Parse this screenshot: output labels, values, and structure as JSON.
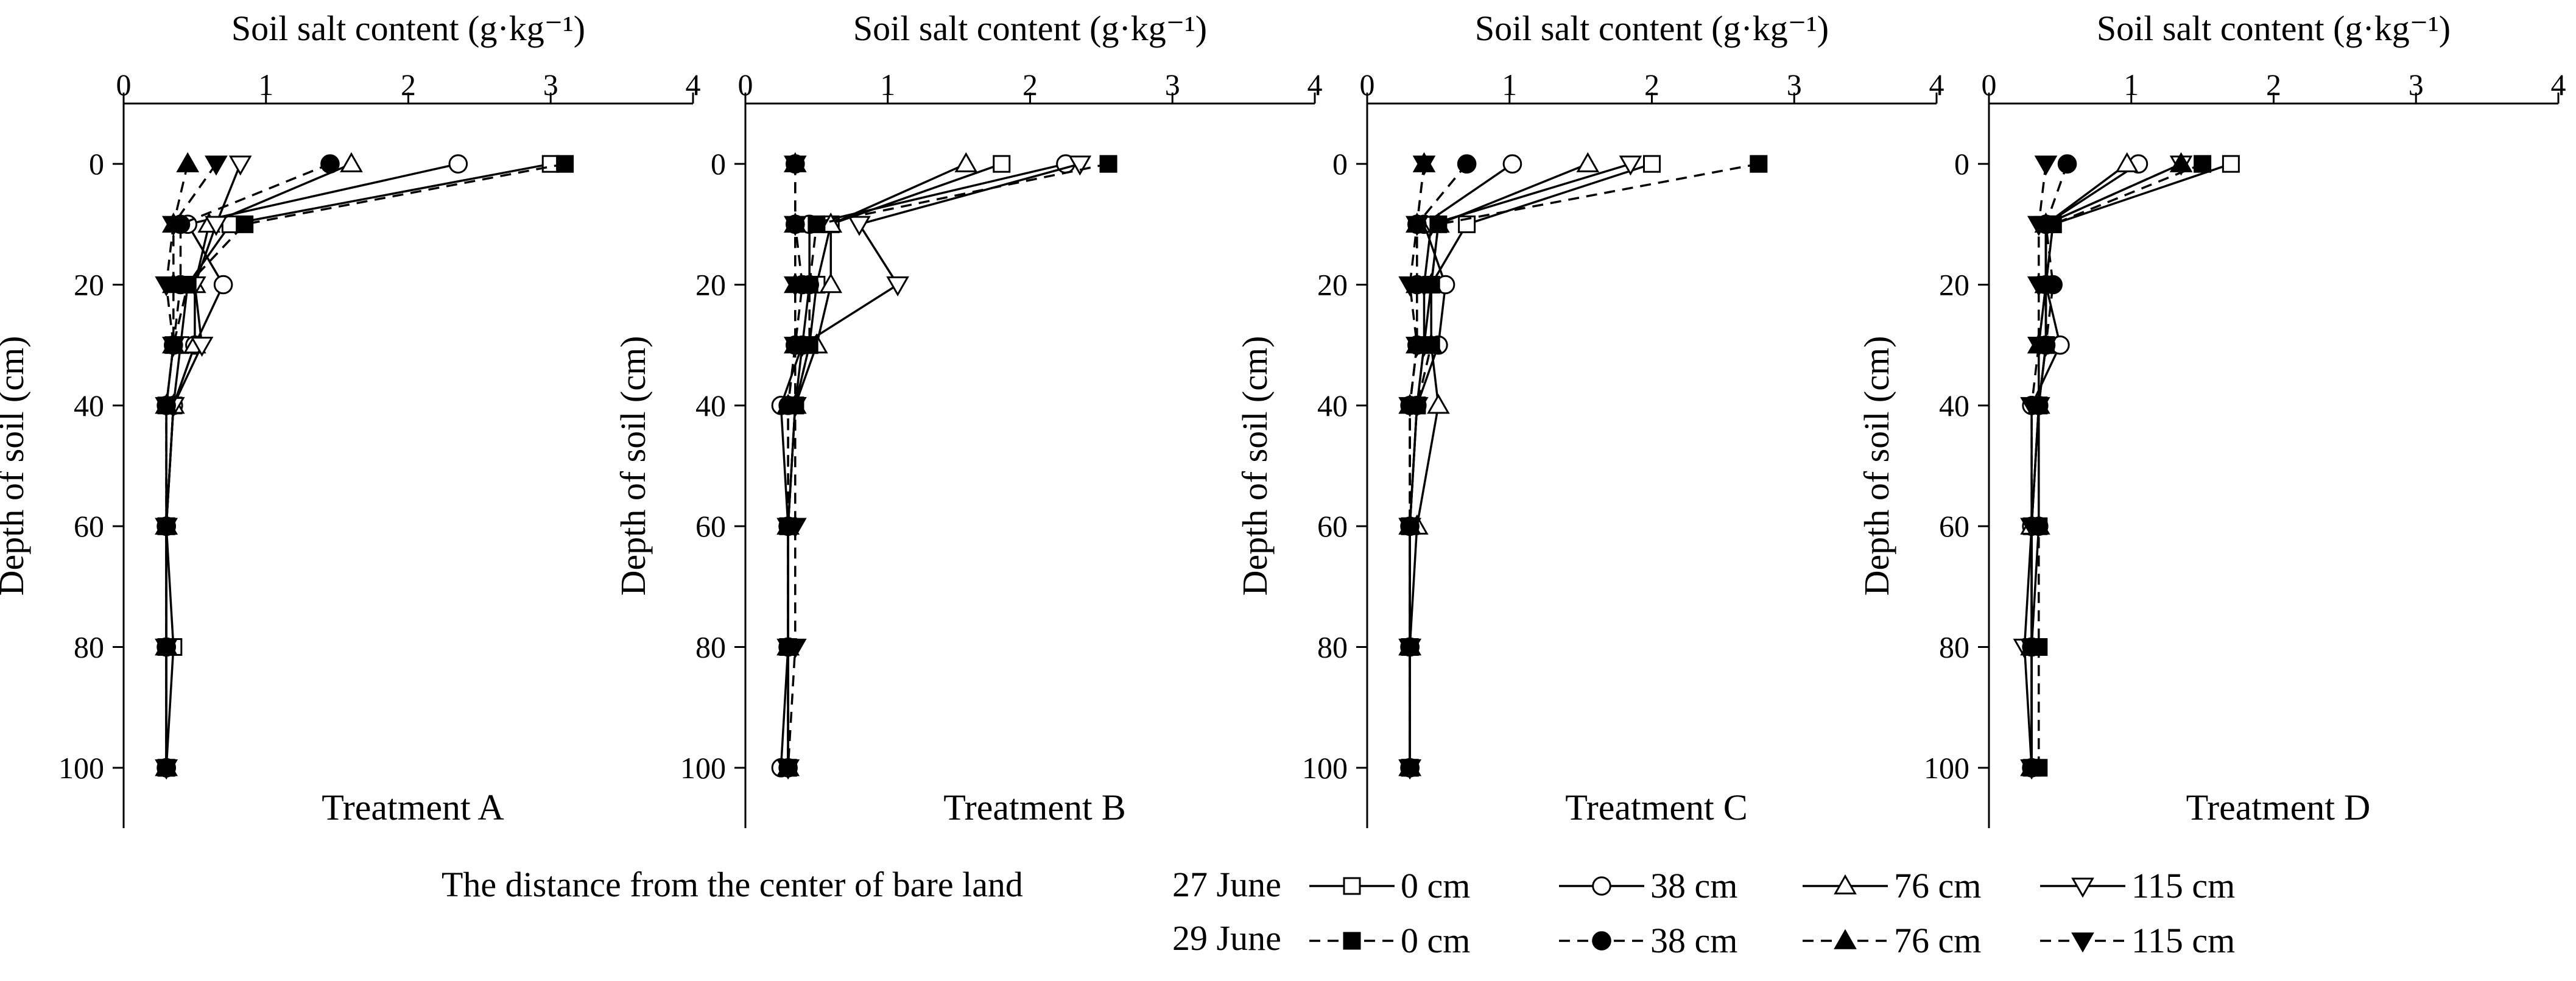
{
  "figure": {
    "legend_caption": "The distance from the center of  bare land",
    "date_labels": [
      "27 June",
      "29 June"
    ],
    "distance_labels": [
      "0 cm",
      "38 cm",
      "76 cm",
      "115 cm"
    ]
  },
  "chart_data": [
    {
      "type": "line",
      "title": "Treatment A",
      "xlabel": "Soil salt content (g·kg⁻¹)",
      "ylabel": "Depth of soil (cm)",
      "xlim": [
        0,
        4
      ],
      "ylim": [
        -10,
        110
      ],
      "xticks": [
        0,
        1,
        2,
        3,
        4
      ],
      "yticks": [
        0,
        20,
        40,
        60,
        80,
        100
      ],
      "x_axis_position": "top",
      "y_axis_inverted": true,
      "depths": [
        0,
        10,
        20,
        30,
        40,
        60,
        80,
        100
      ],
      "series": [
        {
          "name": "27 June 0 cm",
          "date": "27 June",
          "distance": "0 cm",
          "marker": "square",
          "filled": false,
          "dashed": false,
          "values": [
            3.0,
            0.75,
            0.45,
            0.4,
            0.35,
            0.3,
            0.35,
            0.3
          ]
        },
        {
          "name": "27 June 38 cm",
          "date": "27 June",
          "distance": "38 cm",
          "marker": "circle",
          "filled": false,
          "dashed": false,
          "values": [
            2.35,
            0.45,
            0.7,
            0.5,
            0.35,
            0.3,
            0.3,
            0.3
          ]
        },
        {
          "name": "27 June 76 cm",
          "date": "27 June",
          "distance": "76 cm",
          "marker": "triangle-up",
          "filled": false,
          "dashed": false,
          "values": [
            1.6,
            0.6,
            0.5,
            0.5,
            0.35,
            0.3,
            0.3,
            0.3
          ]
        },
        {
          "name": "27 June 115 cm",
          "date": "27 June",
          "distance": "115 cm",
          "marker": "triangle-down",
          "filled": false,
          "dashed": false,
          "values": [
            0.82,
            0.65,
            0.5,
            0.55,
            0.35,
            0.3,
            0.3,
            0.3
          ]
        },
        {
          "name": "29 June 0 cm",
          "date": "29 June",
          "distance": "0 cm",
          "marker": "square",
          "filled": true,
          "dashed": true,
          "values": [
            3.1,
            0.85,
            0.45,
            0.35,
            0.3,
            0.3,
            0.3,
            0.3
          ]
        },
        {
          "name": "29 June 38 cm",
          "date": "29 June",
          "distance": "38 cm",
          "marker": "circle",
          "filled": true,
          "dashed": true,
          "values": [
            1.45,
            0.4,
            0.4,
            0.35,
            0.3,
            0.3,
            0.3,
            0.3
          ]
        },
        {
          "name": "29 June 76 cm",
          "date": "29 June",
          "distance": "76 cm",
          "marker": "triangle-up",
          "filled": true,
          "dashed": true,
          "values": [
            0.45,
            0.35,
            0.35,
            0.35,
            0.3,
            0.3,
            0.3,
            0.3
          ]
        },
        {
          "name": "29 June 115 cm",
          "date": "29 June",
          "distance": "115 cm",
          "marker": "triangle-down",
          "filled": true,
          "dashed": true,
          "values": [
            0.65,
            0.35,
            0.3,
            0.35,
            0.3,
            0.3,
            0.3,
            0.3
          ]
        }
      ]
    },
    {
      "type": "line",
      "title": "Treatment B",
      "xlabel": "Soil salt content (g·kg⁻¹)",
      "ylabel": "Depth of soil (cm)",
      "xlim": [
        0,
        4
      ],
      "ylim": [
        -10,
        110
      ],
      "xticks": [
        0,
        1,
        2,
        3,
        4
      ],
      "yticks": [
        0,
        20,
        40,
        60,
        80,
        100
      ],
      "x_axis_position": "top",
      "y_axis_inverted": true,
      "depths": [
        0,
        10,
        20,
        30,
        40,
        60,
        80,
        100
      ],
      "series": [
        {
          "name": "27 June 0 cm",
          "date": "27 June",
          "distance": "0 cm",
          "marker": "square",
          "filled": false,
          "dashed": false,
          "values": [
            1.8,
            0.6,
            0.5,
            0.45,
            0.35,
            0.3,
            0.3,
            0.3
          ]
        },
        {
          "name": "27 June 38 cm",
          "date": "27 June",
          "distance": "38 cm",
          "marker": "circle",
          "filled": false,
          "dashed": false,
          "values": [
            2.25,
            0.45,
            0.45,
            0.4,
            0.25,
            0.3,
            0.3,
            0.25
          ]
        },
        {
          "name": "27 June 76 cm",
          "date": "27 June",
          "distance": "76 cm",
          "marker": "triangle-up",
          "filled": false,
          "dashed": false,
          "values": [
            1.55,
            0.6,
            0.6,
            0.5,
            0.35,
            0.3,
            0.3,
            0.3
          ]
        },
        {
          "name": "27 June 115 cm",
          "date": "27 June",
          "distance": "115 cm",
          "marker": "triangle-down",
          "filled": false,
          "dashed": false,
          "values": [
            2.35,
            0.8,
            1.07,
            0.4,
            0.35,
            0.3,
            0.3,
            0.3
          ]
        },
        {
          "name": "29 June 0 cm",
          "date": "29 June",
          "distance": "0 cm",
          "marker": "square",
          "filled": true,
          "dashed": true,
          "values": [
            2.55,
            0.5,
            0.45,
            0.45,
            0.35,
            0.3,
            0.3,
            0.3
          ]
        },
        {
          "name": "29 June 38 cm",
          "date": "29 June",
          "distance": "38 cm",
          "marker": "circle",
          "filled": true,
          "dashed": true,
          "values": [
            0.35,
            0.35,
            0.4,
            0.35,
            0.3,
            0.3,
            0.3,
            0.3
          ]
        },
        {
          "name": "29 June 76 cm",
          "date": "29 June",
          "distance": "76 cm",
          "marker": "triangle-up",
          "filled": true,
          "dashed": true,
          "values": [
            0.35,
            0.35,
            0.35,
            0.35,
            0.3,
            0.3,
            0.3,
            0.3
          ]
        },
        {
          "name": "29 June 115 cm",
          "date": "29 June",
          "distance": "115 cm",
          "marker": "triangle-down",
          "filled": true,
          "dashed": true,
          "values": [
            0.35,
            0.35,
            0.35,
            0.35,
            0.35,
            0.35,
            0.35,
            0.3
          ]
        }
      ]
    },
    {
      "type": "line",
      "title": "Treatment C",
      "xlabel": "Soil salt content (g·kg⁻¹)",
      "ylabel": "Depth of soil (cm)",
      "xlim": [
        0,
        4
      ],
      "ylim": [
        -10,
        110
      ],
      "xticks": [
        0,
        1,
        2,
        3,
        4
      ],
      "yticks": [
        0,
        20,
        40,
        60,
        80,
        100
      ],
      "x_axis_position": "top",
      "y_axis_inverted": true,
      "depths": [
        0,
        10,
        20,
        30,
        40,
        60,
        80,
        100
      ],
      "series": [
        {
          "name": "27 June 0 cm",
          "date": "27 June",
          "distance": "0 cm",
          "marker": "square",
          "filled": false,
          "dashed": false,
          "values": [
            2.0,
            0.7,
            0.45,
            0.4,
            0.35,
            0.3,
            0.3,
            0.3
          ]
        },
        {
          "name": "27 June 38 cm",
          "date": "27 June",
          "distance": "38 cm",
          "marker": "circle",
          "filled": false,
          "dashed": false,
          "values": [
            1.02,
            0.4,
            0.55,
            0.5,
            0.35,
            0.3,
            0.3,
            0.3
          ]
        },
        {
          "name": "27 June 76 cm",
          "date": "27 June",
          "distance": "76 cm",
          "marker": "triangle-up",
          "filled": false,
          "dashed": false,
          "values": [
            1.55,
            0.5,
            0.45,
            0.45,
            0.5,
            0.35,
            0.3,
            0.3
          ]
        },
        {
          "name": "27 June 115 cm",
          "date": "27 June",
          "distance": "115 cm",
          "marker": "triangle-down",
          "filled": false,
          "dashed": false,
          "values": [
            1.85,
            0.45,
            0.4,
            0.4,
            0.35,
            0.3,
            0.3,
            0.3
          ]
        },
        {
          "name": "29 June 0 cm",
          "date": "29 June",
          "distance": "0 cm",
          "marker": "square",
          "filled": true,
          "dashed": true,
          "values": [
            2.75,
            0.5,
            0.45,
            0.45,
            0.35,
            0.3,
            0.3,
            0.3
          ]
        },
        {
          "name": "29 June 38 cm",
          "date": "29 June",
          "distance": "38 cm",
          "marker": "circle",
          "filled": true,
          "dashed": true,
          "values": [
            0.7,
            0.35,
            0.35,
            0.35,
            0.3,
            0.3,
            0.3,
            0.3
          ]
        },
        {
          "name": "29 June 76 cm",
          "date": "29 June",
          "distance": "76 cm",
          "marker": "triangle-up",
          "filled": true,
          "dashed": true,
          "values": [
            0.4,
            0.35,
            0.35,
            0.35,
            0.3,
            0.3,
            0.3,
            0.3
          ]
        },
        {
          "name": "29 June 115 cm",
          "date": "29 June",
          "distance": "115 cm",
          "marker": "triangle-down",
          "filled": true,
          "dashed": true,
          "values": [
            0.4,
            0.35,
            0.3,
            0.35,
            0.3,
            0.3,
            0.3,
            0.3
          ]
        }
      ]
    },
    {
      "type": "line",
      "title": "Treatment D",
      "xlabel": "Soil salt content (g·kg⁻¹)",
      "ylabel": "Depth of soil (cm)",
      "xlim": [
        0,
        4
      ],
      "ylim": [
        -10,
        110
      ],
      "xticks": [
        0,
        1,
        2,
        3,
        4
      ],
      "yticks": [
        0,
        20,
        40,
        60,
        80,
        100
      ],
      "x_axis_position": "top",
      "y_axis_inverted": true,
      "depths": [
        0,
        10,
        20,
        30,
        40,
        60,
        80,
        100
      ],
      "series": [
        {
          "name": "27 June 0 cm",
          "date": "27 June",
          "distance": "0 cm",
          "marker": "square",
          "filled": false,
          "dashed": false,
          "values": [
            1.7,
            0.45,
            0.4,
            0.4,
            0.35,
            0.3,
            0.3,
            0.3
          ]
        },
        {
          "name": "27 June 38 cm",
          "date": "27 June",
          "distance": "38 cm",
          "marker": "circle",
          "filled": false,
          "dashed": false,
          "values": [
            1.05,
            0.4,
            0.4,
            0.5,
            0.3,
            0.3,
            0.3,
            0.3
          ]
        },
        {
          "name": "27 June 76 cm",
          "date": "27 June",
          "distance": "76 cm",
          "marker": "triangle-up",
          "filled": false,
          "dashed": false,
          "values": [
            0.97,
            0.4,
            0.4,
            0.35,
            0.35,
            0.3,
            0.3,
            0.3
          ]
        },
        {
          "name": "27 June 115 cm",
          "date": "27 June",
          "distance": "115 cm",
          "marker": "triangle-down",
          "filled": false,
          "dashed": false,
          "values": [
            1.35,
            0.4,
            0.4,
            0.4,
            0.35,
            0.3,
            0.25,
            0.3
          ]
        },
        {
          "name": "29 June 0 cm",
          "date": "29 June",
          "distance": "0 cm",
          "marker": "square",
          "filled": true,
          "dashed": true,
          "values": [
            1.5,
            0.45,
            0.4,
            0.4,
            0.35,
            0.35,
            0.35,
            0.35
          ]
        },
        {
          "name": "29 June 38 cm",
          "date": "29 June",
          "distance": "38 cm",
          "marker": "circle",
          "filled": true,
          "dashed": true,
          "values": [
            0.55,
            0.4,
            0.45,
            0.4,
            0.35,
            0.35,
            0.3,
            0.3
          ]
        },
        {
          "name": "29 June 76 cm",
          "date": "29 June",
          "distance": "76 cm",
          "marker": "triangle-up",
          "filled": true,
          "dashed": true,
          "values": [
            1.35,
            0.4,
            0.4,
            0.35,
            0.35,
            0.35,
            0.3,
            0.3
          ]
        },
        {
          "name": "29 June 115 cm",
          "date": "29 June",
          "distance": "115 cm",
          "marker": "triangle-down",
          "filled": true,
          "dashed": true,
          "values": [
            0.4,
            0.35,
            0.35,
            0.35,
            0.3,
            0.3,
            0.3,
            0.3
          ]
        }
      ]
    }
  ]
}
